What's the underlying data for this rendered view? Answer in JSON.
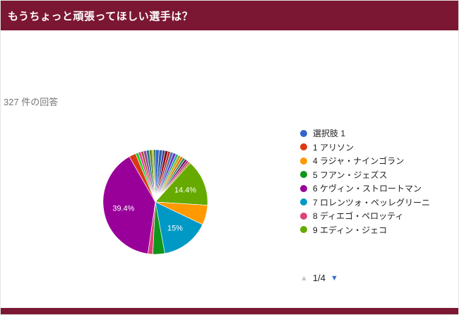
{
  "header": {
    "title": "もうちょっと頑張ってほしい選手は？",
    "bg_color": "#7b1733"
  },
  "responses_label": "327 件の回答",
  "chart_data": {
    "type": "pie",
    "title": "もうちょっと頑張ってほしい選手は？",
    "responses_count": 327,
    "legend_position": "right",
    "segments": [
      {
        "name": "選択肢 1",
        "value": 1.2,
        "color": "#3366cc",
        "label": ""
      },
      {
        "name": "unlabeled",
        "value": 1.0,
        "color": "#316395",
        "label": ""
      },
      {
        "name": "unlabeled",
        "value": 0.8,
        "color": "#3b3eac",
        "label": ""
      },
      {
        "name": "unlabeled",
        "value": 0.9,
        "color": "#8b0707",
        "label": ""
      },
      {
        "name": "unlabeled",
        "value": 0.8,
        "color": "#b82e2e",
        "label": ""
      },
      {
        "name": "unlabeled",
        "value": 0.9,
        "color": "#5574a6",
        "label": ""
      },
      {
        "name": "unlabeled",
        "value": 0.9,
        "color": "#6633cc",
        "label": ""
      },
      {
        "name": "unlabeled",
        "value": 0.8,
        "color": "#22aa99",
        "label": ""
      },
      {
        "name": "unlabeled",
        "value": 0.8,
        "color": "#aaaa11",
        "label": ""
      },
      {
        "name": "unlabeled",
        "value": 0.8,
        "color": "#e67300",
        "label": ""
      },
      {
        "name": "unlabeled",
        "value": 0.8,
        "color": "#329262",
        "label": ""
      },
      {
        "name": "unlabeled",
        "value": 0.7,
        "color": "#651067",
        "label": ""
      },
      {
        "name": "unlabeled",
        "value": 0.6,
        "color": "#b91383",
        "label": ""
      },
      {
        "name": "unlabeled",
        "value": 0.6,
        "color": "#b77322",
        "label": ""
      },
      {
        "name": "9 エディン・ジェコ",
        "value": 14.4,
        "color": "#66aa00",
        "label": "14.4%"
      },
      {
        "name": "4 ラジャ・ナインゴラン",
        "value": 6.1,
        "color": "#ff9900",
        "label": ""
      },
      {
        "name": "7 ロレンツォ・ペッレグリーニ",
        "value": 15,
        "color": "#0099c6",
        "label": "15%"
      },
      {
        "name": "5 フアン・ジェズス",
        "value": 3.7,
        "color": "#109618",
        "label": ""
      },
      {
        "name": "8 ディエゴ・ペロッティ",
        "value": 1.5,
        "color": "#dd4477",
        "label": ""
      },
      {
        "name": "6 ケヴィン・ストロートマン",
        "value": 39.4,
        "color": "#990099",
        "label": "39.4%"
      },
      {
        "name": "1 アリソン",
        "value": 2.1,
        "color": "#dc3912",
        "label": ""
      },
      {
        "name": "unlabeled",
        "value": 0.9,
        "color": "#16d620",
        "label": ""
      },
      {
        "name": "unlabeled",
        "value": 0.8,
        "color": "#f4359e",
        "label": ""
      },
      {
        "name": "unlabeled",
        "value": 0.8,
        "color": "#9c5935",
        "label": ""
      },
      {
        "name": "unlabeled",
        "value": 0.9,
        "color": "#994499",
        "label": ""
      },
      {
        "name": "unlabeled",
        "value": 0.9,
        "color": "#2a778d",
        "label": ""
      },
      {
        "name": "unlabeled",
        "value": 0.9,
        "color": "#668d1c",
        "label": ""
      },
      {
        "name": "unlabeled",
        "value": 0.5,
        "color": "#bea413",
        "label": ""
      },
      {
        "name": "unlabeled",
        "value": 0.5,
        "color": "#0c5922",
        "label": ""
      }
    ],
    "legend": [
      {
        "label": "選択肢 1",
        "color": "#3366cc"
      },
      {
        "label": "1 アリソン",
        "color": "#dc3912"
      },
      {
        "label": "4 ラジャ・ナインゴラン",
        "color": "#ff9900"
      },
      {
        "label": "5 フアン・ジェズス",
        "color": "#109618"
      },
      {
        "label": "6 ケヴィン・ストロートマン",
        "color": "#990099"
      },
      {
        "label": "7 ロレンツォ・ペッレグリーニ",
        "color": "#0099c6"
      },
      {
        "label": "8 ディエゴ・ペロッティ",
        "color": "#dd4477"
      },
      {
        "label": "9 エディン・ジェコ",
        "color": "#66aa00"
      }
    ],
    "pagination": {
      "up": "▲",
      "current": "1/4",
      "down": "▼"
    }
  }
}
